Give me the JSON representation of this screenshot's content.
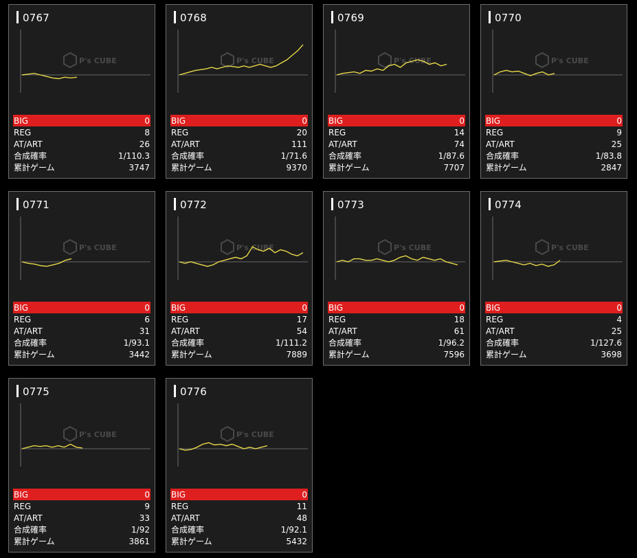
{
  "labels": {
    "big": "BIG",
    "reg": "REG",
    "at": "AT/ART",
    "prob": "合成確率",
    "games": "累計ゲーム"
  },
  "colors": {
    "card_bg": "#1d1d1d",
    "border": "#6e6e6e",
    "big_row": "#df1f1f",
    "graph_line": "#e8d84a",
    "baseline": "#5a5a5a"
  },
  "machines": [
    {
      "id": "0767",
      "big": "0",
      "reg": "8",
      "at": "26",
      "prob": "1/110.3",
      "games": "3747",
      "trend": [
        0,
        0.5,
        1,
        0,
        -1,
        -2,
        -2.5,
        -1.5,
        -2,
        -1.5
      ]
    },
    {
      "id": "0768",
      "big": "0",
      "reg": "20",
      "at": "111",
      "prob": "1/71.6",
      "games": "9370",
      "trend": [
        0,
        1,
        2,
        3,
        3.5,
        4,
        5,
        4,
        5,
        6,
        5.5,
        5,
        6,
        5,
        6,
        7,
        6,
        5,
        6,
        8,
        10,
        13,
        16,
        20
      ]
    },
    {
      "id": "0769",
      "big": "0",
      "reg": "14",
      "at": "74",
      "prob": "1/87.6",
      "games": "7707",
      "trend": [
        0,
        1,
        1.5,
        2,
        1,
        3,
        2.5,
        4,
        3,
        6,
        7,
        5,
        8,
        9,
        10,
        9,
        7,
        8,
        6,
        7
      ]
    },
    {
      "id": "0770",
      "big": "0",
      "reg": "9",
      "at": "25",
      "prob": "1/83.8",
      "games": "2847",
      "trend": [
        0,
        2,
        3,
        2,
        2.5,
        1,
        -0.5,
        1,
        2,
        0,
        1
      ]
    },
    {
      "id": "0771",
      "big": "0",
      "reg": "6",
      "at": "31",
      "prob": "1/93.1",
      "games": "3442",
      "trend": [
        0,
        -1,
        -1.5,
        -2.5,
        -3,
        -2,
        -1,
        1,
        2
      ]
    },
    {
      "id": "0772",
      "big": "0",
      "reg": "17",
      "at": "54",
      "prob": "1/111.2",
      "games": "7889",
      "trend": [
        0,
        -1,
        0,
        -1,
        -2,
        -3,
        -2,
        0,
        1,
        2,
        3,
        2,
        4,
        10,
        8,
        7,
        9,
        6,
        8,
        7,
        5,
        4,
        6
      ]
    },
    {
      "id": "0773",
      "big": "0",
      "reg": "18",
      "at": "61",
      "prob": "1/96.2",
      "games": "7596",
      "trend": [
        0,
        1,
        0,
        2,
        2,
        1,
        1,
        2,
        1,
        0,
        1,
        3,
        4,
        2,
        1,
        3,
        2,
        1,
        2,
        0,
        -1,
        -2
      ]
    },
    {
      "id": "0774",
      "big": "0",
      "reg": "4",
      "at": "25",
      "prob": "1/127.6",
      "games": "3698",
      "trend": [
        0,
        0.5,
        1,
        0,
        -1,
        -2,
        -1,
        -2.5,
        -1.5,
        -3,
        -2,
        1
      ]
    },
    {
      "id": "0775",
      "big": "0",
      "reg": "9",
      "at": "33",
      "prob": "1/92",
      "games": "3861",
      "trend": [
        0,
        1,
        2,
        1.5,
        2,
        1,
        2,
        1,
        3,
        1,
        0.5
      ]
    },
    {
      "id": "0776",
      "big": "0",
      "reg": "11",
      "at": "48",
      "prob": "1/92.1",
      "games": "5432",
      "trend": [
        0,
        -1,
        -0.5,
        1,
        3,
        4,
        2.5,
        3,
        2,
        3,
        1.5,
        0,
        1,
        0,
        1,
        2
      ]
    }
  ]
}
